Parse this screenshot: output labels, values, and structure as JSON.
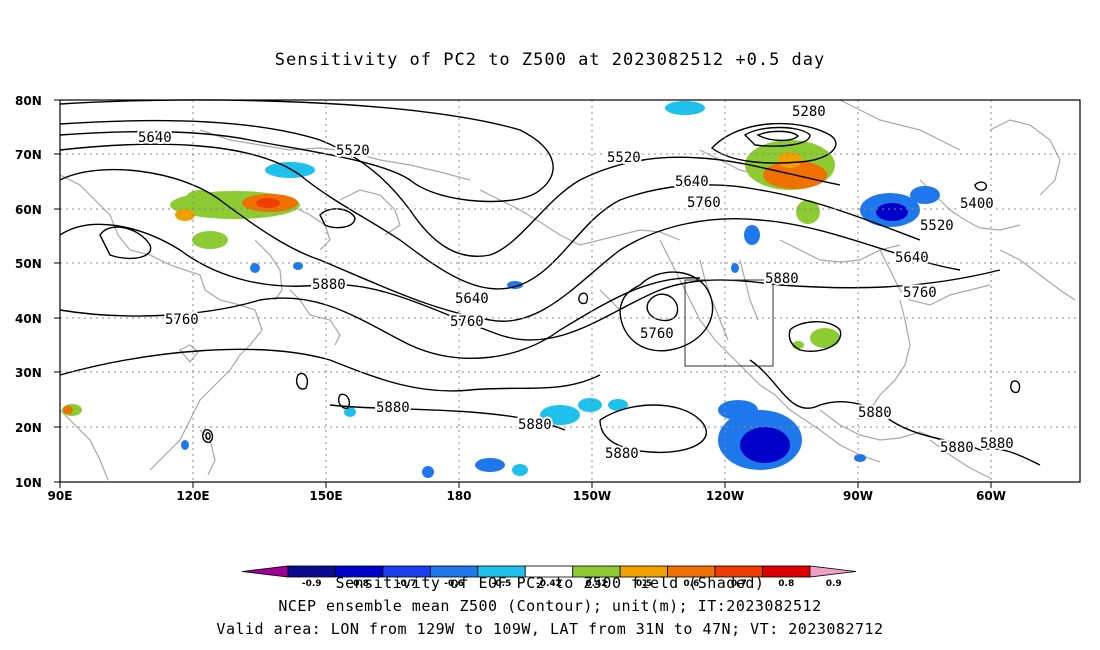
{
  "title": "Sensitivity of PC2 to Z500 at 2023082512 +0.5 day",
  "lat_ticks": [
    "80N",
    "70N",
    "60N",
    "50N",
    "40N",
    "30N",
    "20N",
    "10N"
  ],
  "lon_ticks": [
    "90E",
    "120E",
    "150E",
    "180",
    "150W",
    "120W",
    "90W",
    "60W"
  ],
  "contour_labels": [
    "5640",
    "5520",
    "5280",
    "5520",
    "5640",
    "5760",
    "5400",
    "5520",
    "5640",
    "5760",
    "5880",
    "5880",
    "5640",
    "5760",
    "5760",
    "5760",
    "5880",
    "5880",
    "5880",
    "5880",
    "5880",
    "5880"
  ],
  "colorbar": {
    "ticks": [
      "-0.9",
      "-0.8",
      "-0.7",
      "-0.6",
      "-0.5",
      "-0.42",
      "0.42",
      "0.5",
      "0.6",
      "0.7",
      "0.8",
      "0.9"
    ],
    "colors": [
      "#a0009a",
      "#0a0a8c",
      "#0000c8",
      "#1c3cf0",
      "#1e78ec",
      "#1ec0ec",
      "#ffffff",
      "#8ccc32",
      "#f0a000",
      "#f07000",
      "#f03c00",
      "#e00000",
      "#f0a0c8"
    ]
  },
  "footer": {
    "line1": "Sensitivity of EOF PC2 to Z500 field (Shaded)",
    "line2": "NCEP ensemble mean Z500 (Contour); unit(m); IT:2023082512",
    "line3": "Valid area: LON from 129W to 109W, LAT from 31N to 47N; VT: 2023082712"
  },
  "valid_area": {
    "lon_min": -129,
    "lon_max": -109,
    "lat_min": 31,
    "lat_max": 47
  }
}
